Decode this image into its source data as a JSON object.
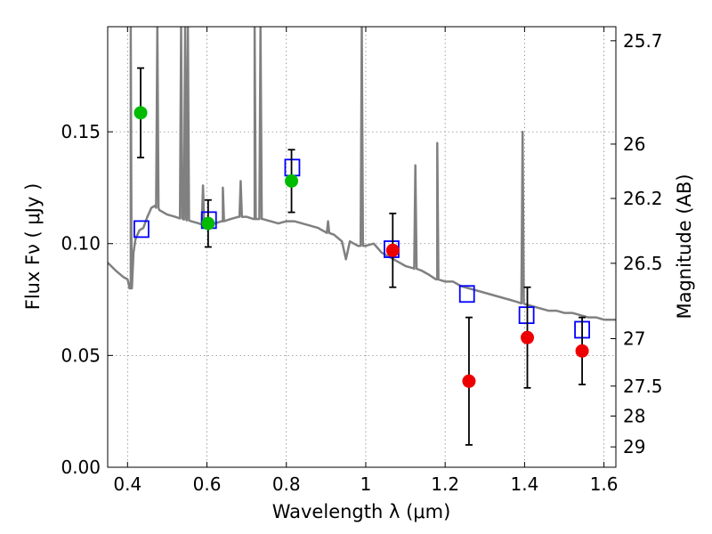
{
  "chart_data": {
    "type": "scatter",
    "xlabel": "Wavelength  λ (μm)",
    "ylabel": "Flux  Fν  ( μJy )",
    "right_ylabel": "Magnitude (AB)",
    "xlim": [
      0.35,
      1.63
    ],
    "ylim": [
      0.0,
      0.197
    ],
    "grid": true,
    "x_ticks": [
      0.4,
      0.6,
      0.8,
      1.0,
      1.2,
      1.4,
      1.6
    ],
    "x_tick_labels": [
      "0.4",
      "0.6",
      "0.8",
      "1",
      "1.2",
      "1.4",
      "1.6"
    ],
    "y_ticks": [
      0.0,
      0.05,
      0.1,
      0.15
    ],
    "y_tick_labels": [
      "0.00",
      "0.05",
      "0.10",
      "0.15"
    ],
    "right_ticks": [
      {
        "label": "25.7",
        "flux": 0.1907
      },
      {
        "label": "26",
        "flux": 0.1445
      },
      {
        "label": "26.2",
        "flux": 0.1202
      },
      {
        "label": "26.5",
        "flux": 0.0912
      },
      {
        "label": "27",
        "flux": 0.0575
      },
      {
        "label": "27.5",
        "flux": 0.0363
      },
      {
        "label": "28",
        "flux": 0.0229
      },
      {
        "label": "29",
        "flux": 0.0091
      }
    ],
    "colors": {
      "sed": "#808080",
      "model": "#0000ff",
      "green": "#00bb00",
      "red": "#ee0000",
      "errorbar": "#000000"
    },
    "series": [
      {
        "kind": "line",
        "points": [
          [
            0.35,
            0.0915
          ],
          [
            0.37,
            0.088
          ],
          [
            0.39,
            0.085
          ],
          [
            0.4,
            0.084
          ],
          [
            0.403,
            0.082
          ],
          [
            0.408,
            0.08
          ],
          [
            0.41,
            0.092
          ],
          [
            0.415,
            0.096
          ],
          [
            0.42,
            0.102
          ],
          [
            0.43,
            0.106
          ],
          [
            0.44,
            0.107
          ],
          [
            0.45,
            0.112
          ],
          [
            0.46,
            0.116
          ],
          [
            0.47,
            0.117
          ],
          [
            0.48,
            0.115
          ],
          [
            0.49,
            0.114
          ],
          [
            0.5,
            0.113
          ],
          [
            0.52,
            0.112
          ],
          [
            0.54,
            0.111
          ],
          [
            0.56,
            0.11
          ],
          [
            0.58,
            0.109
          ],
          [
            0.6,
            0.108
          ],
          [
            0.62,
            0.109
          ],
          [
            0.64,
            0.11
          ],
          [
            0.66,
            0.111
          ],
          [
            0.68,
            0.112
          ],
          [
            0.7,
            0.112
          ],
          [
            0.72,
            0.111
          ],
          [
            0.74,
            0.111
          ],
          [
            0.76,
            0.11
          ],
          [
            0.78,
            0.109
          ],
          [
            0.8,
            0.11
          ],
          [
            0.82,
            0.11
          ],
          [
            0.84,
            0.109
          ],
          [
            0.86,
            0.108
          ],
          [
            0.88,
            0.107
          ],
          [
            0.9,
            0.105
          ],
          [
            0.92,
            0.104
          ],
          [
            0.94,
            0.101
          ],
          [
            0.95,
            0.093
          ],
          [
            0.96,
            0.101
          ],
          [
            0.98,
            0.099
          ],
          [
            1.0,
            0.099
          ],
          [
            1.02,
            0.1
          ],
          [
            1.04,
            0.096
          ],
          [
            1.06,
            0.094
          ],
          [
            1.08,
            0.092
          ],
          [
            1.1,
            0.09
          ],
          [
            1.12,
            0.089
          ],
          [
            1.14,
            0.088
          ],
          [
            1.16,
            0.086
          ],
          [
            1.18,
            0.084
          ],
          [
            1.2,
            0.083
          ],
          [
            1.22,
            0.083
          ],
          [
            1.24,
            0.081
          ],
          [
            1.26,
            0.08
          ],
          [
            1.28,
            0.079
          ],
          [
            1.3,
            0.078
          ],
          [
            1.32,
            0.077
          ],
          [
            1.34,
            0.076
          ],
          [
            1.36,
            0.075
          ],
          [
            1.38,
            0.074
          ],
          [
            1.4,
            0.073
          ],
          [
            1.42,
            0.072
          ],
          [
            1.44,
            0.071
          ],
          [
            1.46,
            0.07
          ],
          [
            1.48,
            0.07
          ],
          [
            1.5,
            0.069
          ],
          [
            1.52,
            0.069
          ],
          [
            1.54,
            0.068
          ],
          [
            1.56,
            0.067
          ],
          [
            1.58,
            0.067
          ],
          [
            1.6,
            0.066
          ],
          [
            1.63,
            0.066
          ]
        ],
        "spikes": [
          [
            0.408,
            0.197
          ],
          [
            0.475,
            0.197
          ],
          [
            0.535,
            0.197
          ],
          [
            0.545,
            0.197
          ],
          [
            0.552,
            0.197
          ],
          [
            0.59,
            0.126
          ],
          [
            0.64,
            0.125
          ],
          [
            0.685,
            0.128
          ],
          [
            0.72,
            0.197
          ],
          [
            0.735,
            0.197
          ],
          [
            0.905,
            0.11
          ],
          [
            0.99,
            0.197
          ],
          [
            1.125,
            0.135
          ],
          [
            1.18,
            0.145
          ],
          [
            1.395,
            0.15
          ]
        ]
      },
      {
        "kind": "model",
        "points": [
          [
            0.435,
            0.1065
          ],
          [
            0.605,
            0.1105
          ],
          [
            0.815,
            0.134
          ],
          [
            1.065,
            0.0975
          ],
          [
            1.255,
            0.0775
          ],
          [
            1.405,
            0.068
          ],
          [
            1.545,
            0.0615
          ]
        ]
      },
      {
        "kind": "green",
        "points": [
          [
            0.433,
            0.1585,
            0.1385,
            0.1785
          ],
          [
            0.603,
            0.109,
            0.0985,
            0.1195
          ],
          [
            0.813,
            0.128,
            0.114,
            0.142
          ]
        ]
      },
      {
        "kind": "red",
        "points": [
          [
            1.068,
            0.097,
            0.0805,
            0.1135
          ],
          [
            1.26,
            0.0385,
            0.01,
            0.067
          ],
          [
            1.407,
            0.058,
            0.0355,
            0.0805
          ],
          [
            1.545,
            0.052,
            0.037,
            0.067
          ]
        ]
      }
    ]
  }
}
